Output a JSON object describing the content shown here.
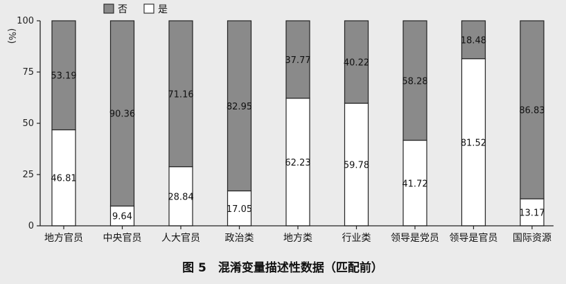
{
  "chart_data": {
    "type": "bar",
    "stacked": true,
    "categories": [
      "地方官员",
      "中央官员",
      "人大官员",
      "政治类",
      "地方类",
      "行业类",
      "领导是党员",
      "领导是官员",
      "国际资源"
    ],
    "series": [
      {
        "name": "是",
        "values": [
          46.81,
          9.64,
          28.84,
          17.05,
          62.23,
          59.78,
          41.72,
          81.52,
          13.17
        ]
      },
      {
        "name": "否",
        "values": [
          53.19,
          90.36,
          71.16,
          82.95,
          37.77,
          40.22,
          58.28,
          18.48,
          86.83
        ]
      }
    ],
    "legend": {
      "items": [
        "否",
        "是"
      ],
      "position": "top"
    },
    "ylabel": "(%)",
    "ylim": [
      0,
      100
    ],
    "yticks": [
      0,
      25,
      50,
      75,
      100
    ],
    "caption": "图 5　混淆变量描述性数据（匹配前）",
    "colors": {
      "是": "#ffffff",
      "否": "#8a8a8a",
      "axis": "#222222",
      "background": "#ebebeb"
    }
  }
}
